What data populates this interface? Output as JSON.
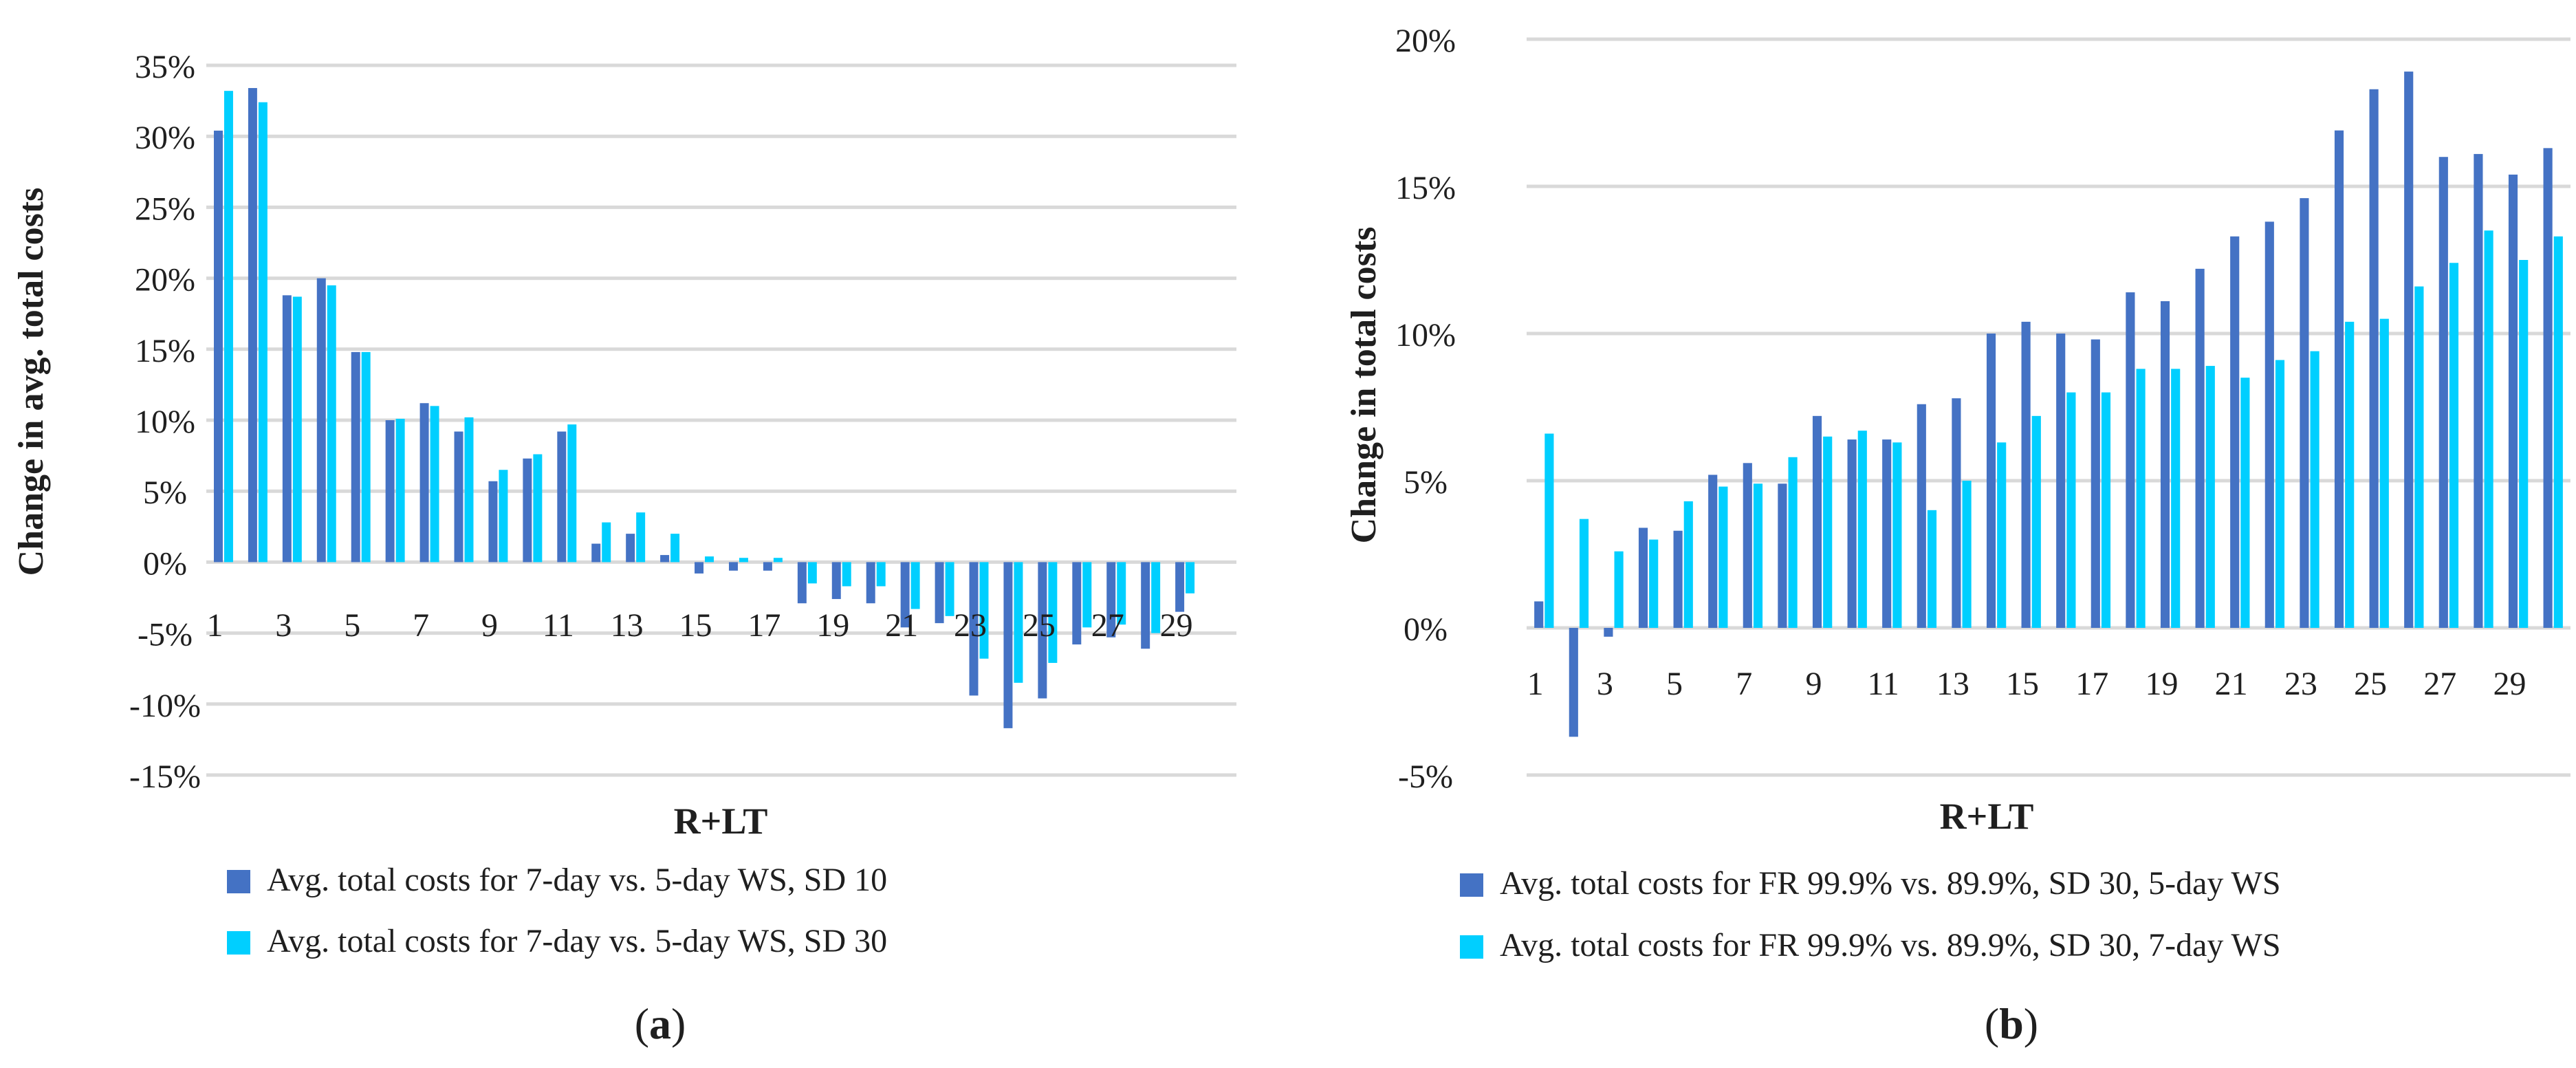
{
  "colors": {
    "series1": "#4472C4",
    "series2": "#00CFFF",
    "grid": "#d9d9d9",
    "text": "#1f1f1f"
  },
  "chart_data": [
    {
      "type": "bar",
      "panel_label": "(a)",
      "xlabel": "R+LT",
      "ylabel": "Change in avg. total costs",
      "ylim": [
        -15,
        35
      ],
      "yticks": [
        -15,
        -10,
        -5,
        0,
        5,
        10,
        15,
        20,
        25,
        30,
        35
      ],
      "ytick_labels": [
        "-15%",
        "-10%",
        "-5%",
        "0%",
        "5%",
        "10%",
        "15%",
        "20%",
        "25%",
        "30%",
        "35%"
      ],
      "categories": [
        1,
        2,
        3,
        4,
        5,
        6,
        7,
        8,
        9,
        10,
        11,
        12,
        13,
        14,
        15,
        16,
        17,
        18,
        19,
        20,
        21,
        22,
        23,
        24,
        25,
        26,
        27,
        28,
        29,
        30
      ],
      "xtick_labels": [
        "1",
        "3",
        "5",
        "7",
        "9",
        "11",
        "13",
        "15",
        "17",
        "19",
        "21",
        "23",
        "25",
        "27",
        "29"
      ],
      "x_labels_at": "zero-line",
      "legend_position": "bottom",
      "series": [
        {
          "name": "Avg. total costs for 7-day vs. 5-day WS, SD 10",
          "values": [
            30.4,
            33.4,
            18.8,
            20.0,
            14.8,
            10.0,
            11.2,
            9.2,
            5.7,
            7.3,
            9.2,
            1.3,
            2.0,
            0.5,
            -0.8,
            -0.6,
            -0.6,
            -2.9,
            -2.6,
            -2.9,
            -4.6,
            -4.3,
            -9.4,
            -11.7,
            -9.6,
            -5.8,
            -5.3,
            -6.1,
            -3.5,
            0
          ]
        },
        {
          "name": "Avg. total costs for 7-day vs. 5-day WS, SD 30",
          "values": [
            33.2,
            32.4,
            18.7,
            19.5,
            14.8,
            10.1,
            11.0,
            10.2,
            6.5,
            7.6,
            9.7,
            2.8,
            3.5,
            2.0,
            0.4,
            0.3,
            0.3,
            -1.5,
            -1.7,
            -1.7,
            -3.3,
            -3.8,
            -6.8,
            -8.5,
            -7.1,
            -4.6,
            -4.4,
            -5.0,
            -2.2,
            0
          ]
        }
      ]
    },
    {
      "type": "bar",
      "panel_label": "(b)",
      "xlabel": "R+LT",
      "ylabel": "Change in  total costs",
      "ylim": [
        -5,
        20
      ],
      "yticks": [
        -5,
        0,
        5,
        10,
        15,
        20
      ],
      "ytick_labels": [
        "-5%",
        "0%",
        "5%",
        "10%",
        "15%",
        "20%"
      ],
      "categories": [
        1,
        2,
        3,
        4,
        5,
        6,
        7,
        8,
        9,
        10,
        11,
        12,
        13,
        14,
        15,
        16,
        17,
        18,
        19,
        20,
        21,
        22,
        23,
        24,
        25,
        26,
        27,
        28,
        29,
        30
      ],
      "xtick_labels": [
        "1",
        "3",
        "5",
        "7",
        "9",
        "11",
        "13",
        "15",
        "17",
        "19",
        "21",
        "23",
        "25",
        "27",
        "29"
      ],
      "x_labels_at": "zero-line",
      "legend_position": "bottom",
      "series": [
        {
          "name": "Avg. total costs for FR 99.9% vs. 89.9%, SD 30, 5-day WS",
          "values": [
            0.9,
            -3.7,
            -0.3,
            3.4,
            3.3,
            5.2,
            5.6,
            4.9,
            7.2,
            6.4,
            6.4,
            7.6,
            7.8,
            10.0,
            10.4,
            10.0,
            9.8,
            11.4,
            11.1,
            12.2,
            13.3,
            13.8,
            14.6,
            16.9,
            18.3,
            18.9,
            16.0,
            16.1,
            15.4,
            16.3
          ]
        },
        {
          "name": "Avg. total costs for FR 99.9% vs. 89.9%, SD 30, 7-day WS",
          "values": [
            6.6,
            3.7,
            2.6,
            3.0,
            4.3,
            4.8,
            4.9,
            5.8,
            6.5,
            6.7,
            6.3,
            4.0,
            5.0,
            6.3,
            7.2,
            8.0,
            8.0,
            8.8,
            8.8,
            8.9,
            8.5,
            9.1,
            9.4,
            10.4,
            10.5,
            11.6,
            12.4,
            13.5,
            12.5,
            13.3
          ]
        }
      ]
    }
  ]
}
